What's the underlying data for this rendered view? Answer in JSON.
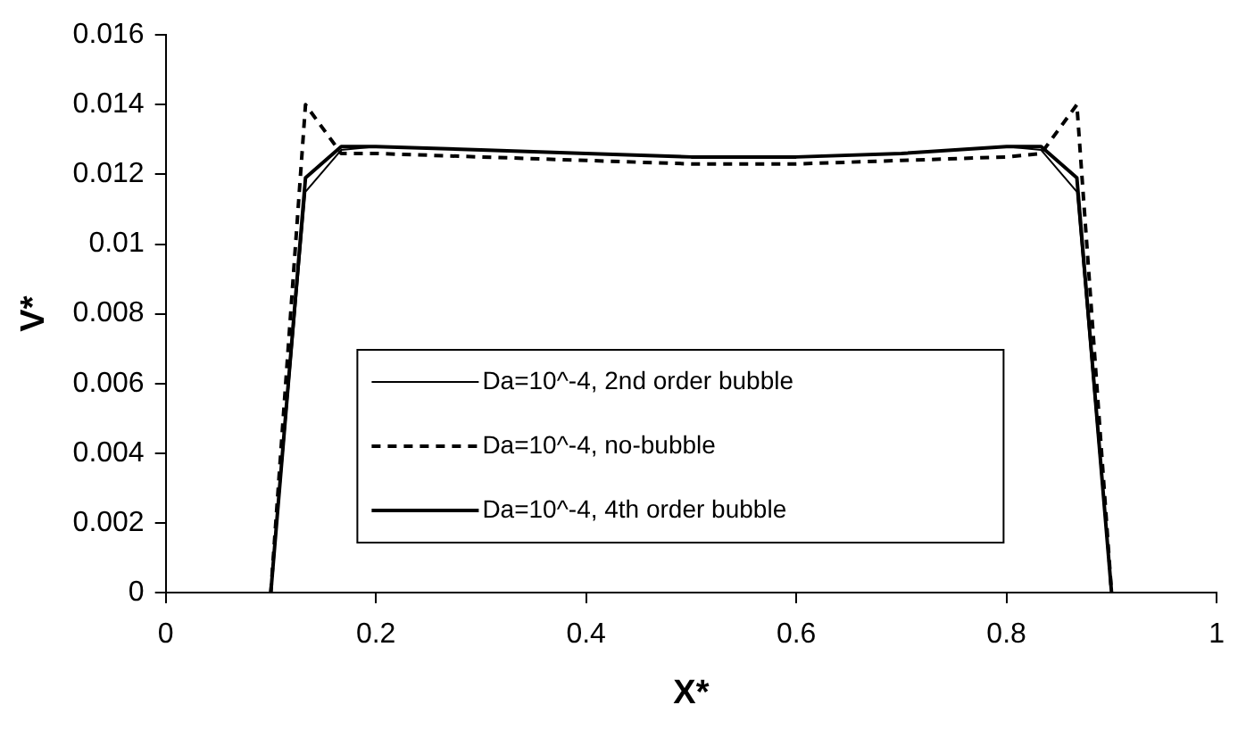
{
  "chart_data": {
    "type": "line",
    "xlabel": "X*",
    "ylabel": "V*",
    "x": [
      0.1,
      0.133,
      0.167,
      0.2,
      0.3,
      0.4,
      0.5,
      0.6,
      0.7,
      0.8,
      0.833,
      0.867,
      0.9
    ],
    "xlim": [
      0,
      1
    ],
    "xticks": [
      0,
      0.2,
      0.4,
      0.6,
      0.8,
      1
    ],
    "ylim": [
      0,
      0.016
    ],
    "yticks": [
      0,
      0.002,
      0.004,
      0.006,
      0.008,
      0.01,
      0.012,
      0.014,
      0.016
    ],
    "grid": false,
    "legend": "bottom",
    "marker": "none",
    "series": [
      {
        "name": "Da=10^-4, 2nd order bubble",
        "color": "#000000",
        "line_style": "solid",
        "values": [
          0,
          0.0115,
          0.0127,
          0.0128,
          0.0127,
          0.0126,
          0.0125,
          0.0125,
          0.0126,
          0.0128,
          0.0127,
          0.0115,
          0
        ]
      },
      {
        "name": "Da=10^-4, no-bubble",
        "color": "#000000",
        "line_style": "dashed",
        "values": [
          0,
          0.014,
          0.0126,
          0.0126,
          0.0125,
          0.0124,
          0.0123,
          0.0123,
          0.0124,
          0.0125,
          0.0126,
          0.014,
          0
        ]
      },
      {
        "name": "Da=10^-4, 4th order bubble",
        "color": "#000000",
        "line_style": "solid",
        "values": [
          0,
          0.0119,
          0.0128,
          0.0128,
          0.0127,
          0.0126,
          0.0125,
          0.0125,
          0.0126,
          0.0128,
          0.0128,
          0.0119,
          0
        ]
      }
    ]
  }
}
